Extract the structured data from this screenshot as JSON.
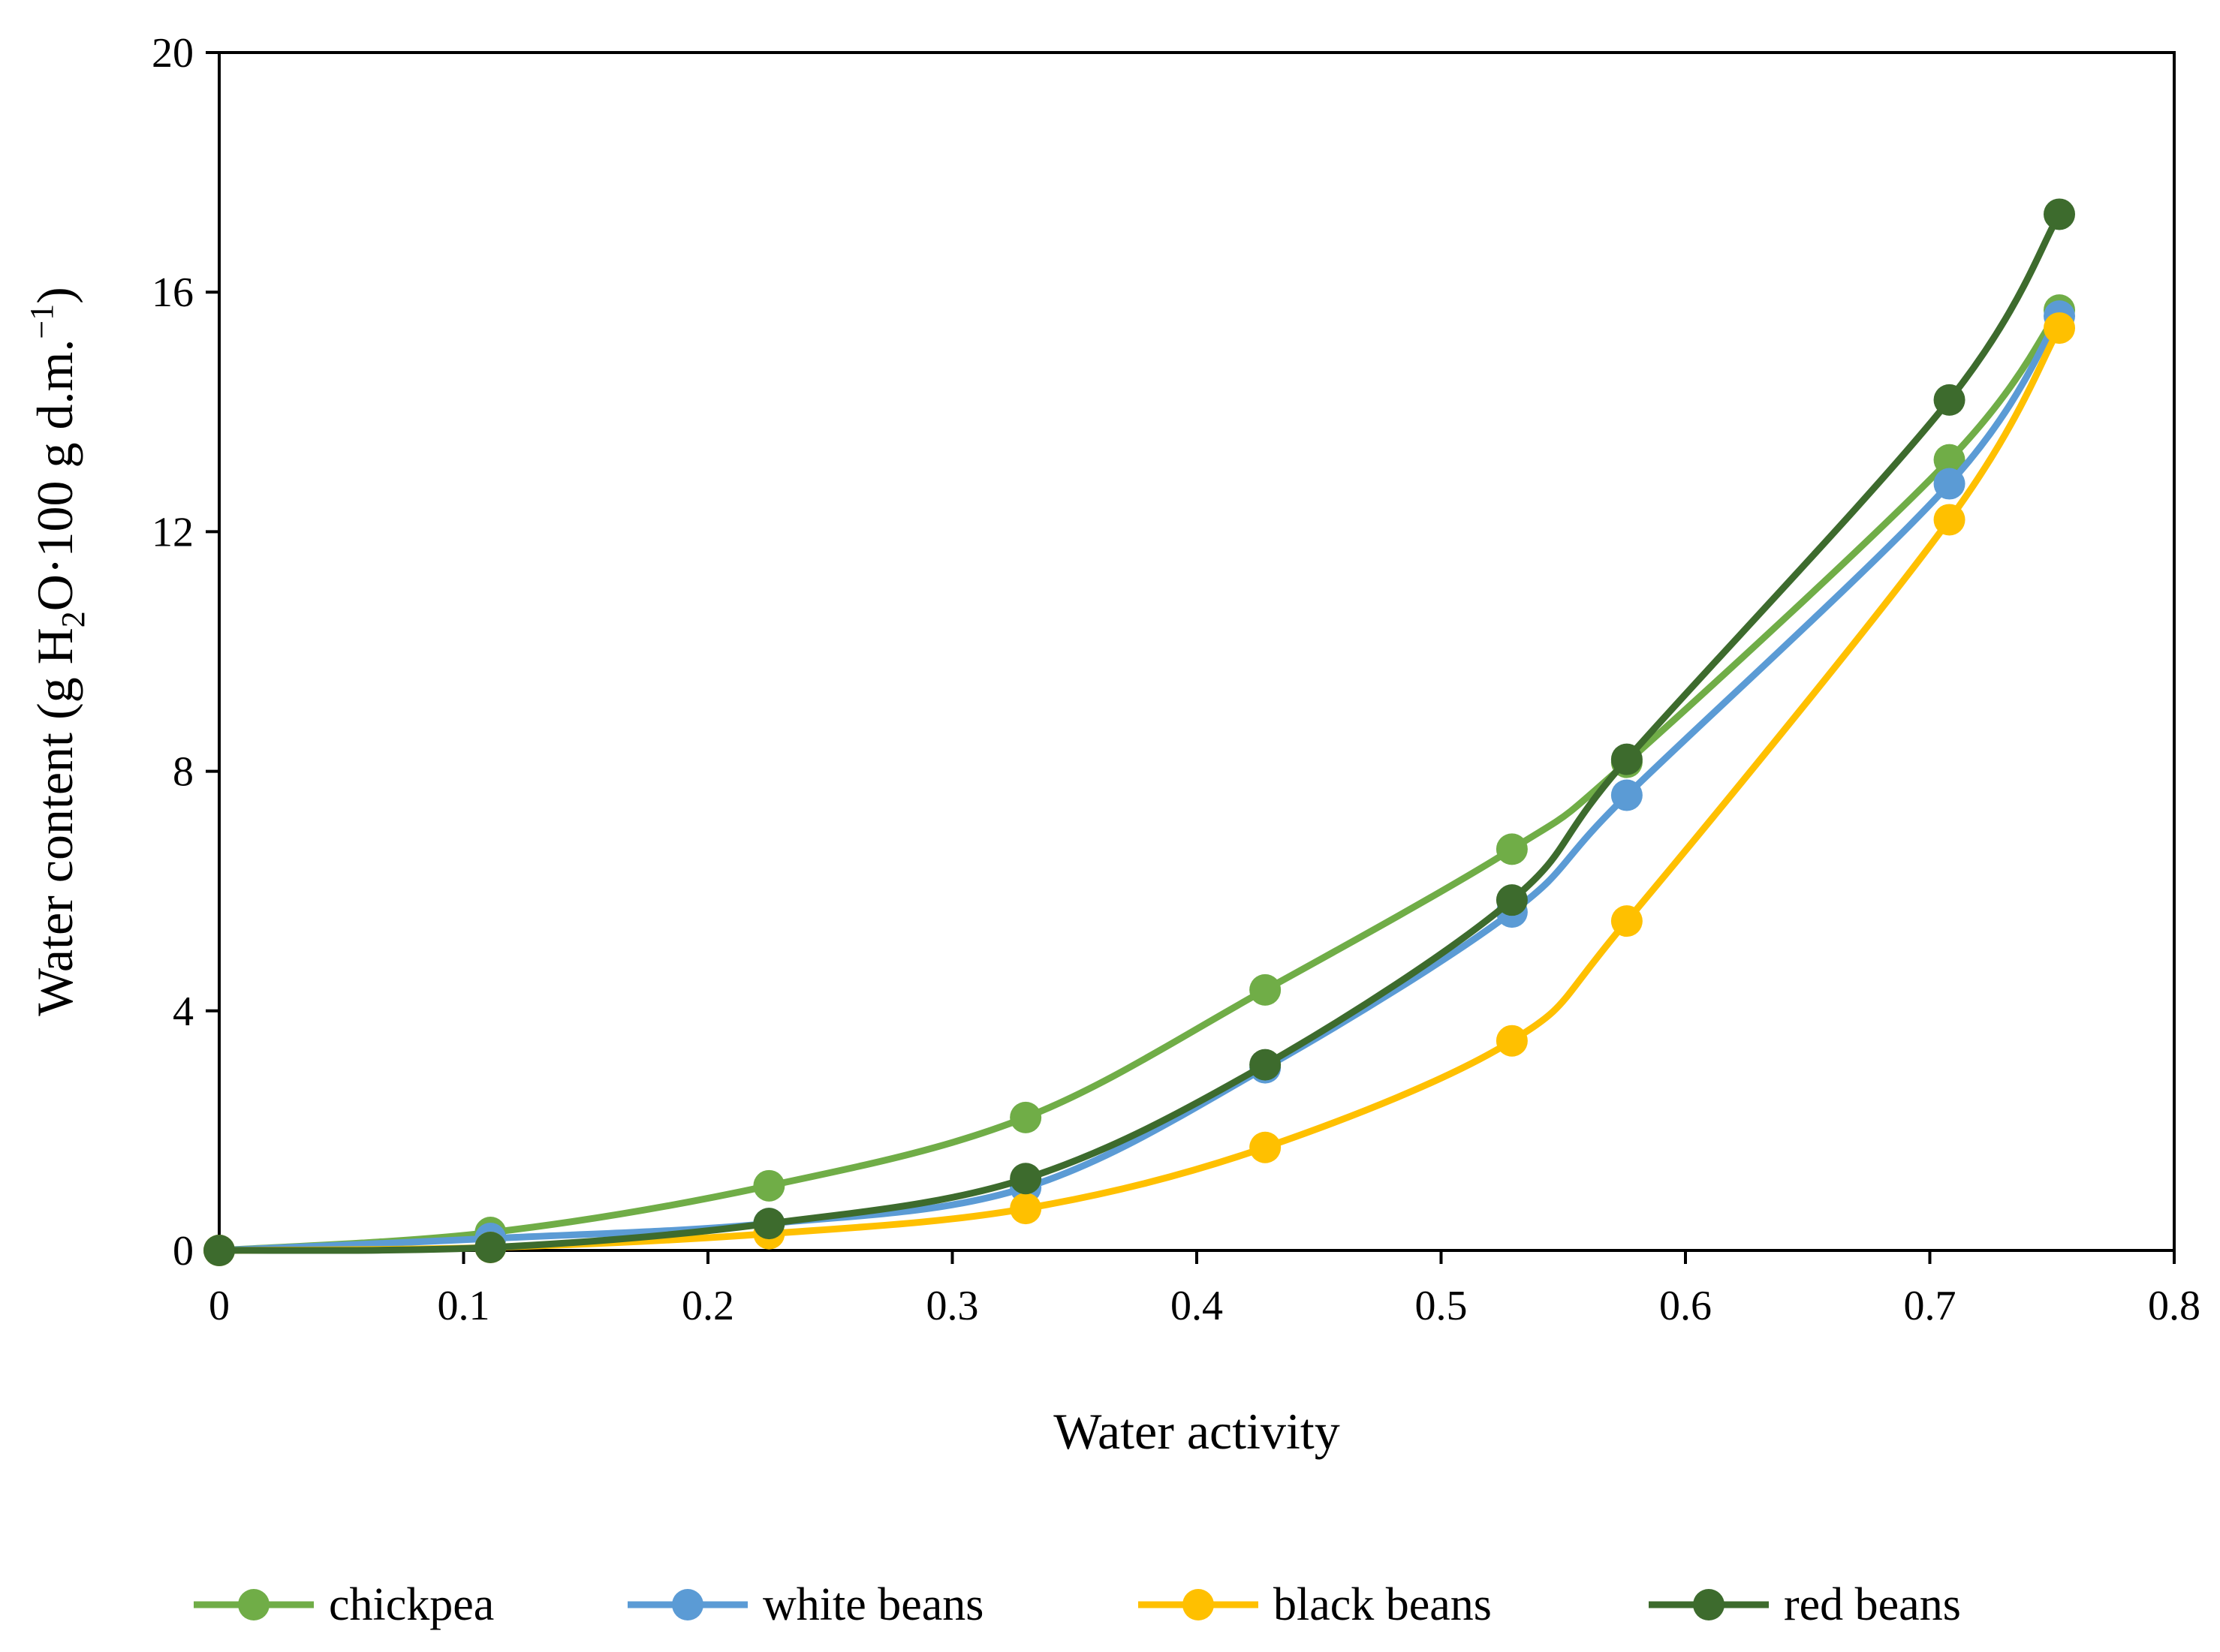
{
  "chart_data": {
    "type": "line",
    "title": "",
    "xlabel": "Water activity",
    "ylabel": {
      "prefix": "Water content (g H",
      "sub": "2",
      "middle": "O·100 g d.m.",
      "sup": "−1",
      "suffix": ")"
    },
    "xlim": [
      0,
      0.8
    ],
    "ylim": [
      0,
      20
    ],
    "xticks": [
      "0",
      "0.1",
      "0.2",
      "0.3",
      "0.4",
      "0.5",
      "0.6",
      "0.7",
      "0.8"
    ],
    "yticks": [
      "0",
      "4",
      "8",
      "12",
      "16",
      "20"
    ],
    "grid": false,
    "legend_position": "bottom",
    "series": [
      {
        "name": "chickpea",
        "color": "#70AD47",
        "points": [
          [
            0,
            0
          ],
          [
            0.111,
            0.3
          ],
          [
            0.225,
            1.08
          ],
          [
            0.33,
            2.22
          ],
          [
            0.428,
            4.35
          ],
          [
            0.529,
            6.7
          ],
          [
            0.576,
            8.15
          ],
          [
            0.708,
            13.2
          ],
          [
            0.753,
            15.7
          ]
        ]
      },
      {
        "name": "white beans",
        "color": "#5B9BD5",
        "points": [
          [
            0,
            0
          ],
          [
            0.111,
            0.2
          ],
          [
            0.225,
            0.45
          ],
          [
            0.33,
            1.05
          ],
          [
            0.428,
            3.05
          ],
          [
            0.529,
            5.65
          ],
          [
            0.576,
            7.6
          ],
          [
            0.708,
            12.8
          ],
          [
            0.753,
            15.6
          ]
        ]
      },
      {
        "name": "black beans",
        "color": "#FFC000",
        "points": [
          [
            0,
            0
          ],
          [
            0.111,
            0.05
          ],
          [
            0.225,
            0.28
          ],
          [
            0.33,
            0.7
          ],
          [
            0.428,
            1.72
          ],
          [
            0.529,
            3.5
          ],
          [
            0.576,
            5.5
          ],
          [
            0.708,
            12.2
          ],
          [
            0.753,
            15.4
          ]
        ]
      },
      {
        "name": "red beans",
        "color": "#3D6B2D",
        "points": [
          [
            0,
            0
          ],
          [
            0.111,
            0.05
          ],
          [
            0.225,
            0.45
          ],
          [
            0.33,
            1.2
          ],
          [
            0.428,
            3.1
          ],
          [
            0.529,
            5.85
          ],
          [
            0.576,
            8.2
          ],
          [
            0.708,
            14.2
          ],
          [
            0.753,
            17.3
          ]
        ]
      }
    ]
  }
}
